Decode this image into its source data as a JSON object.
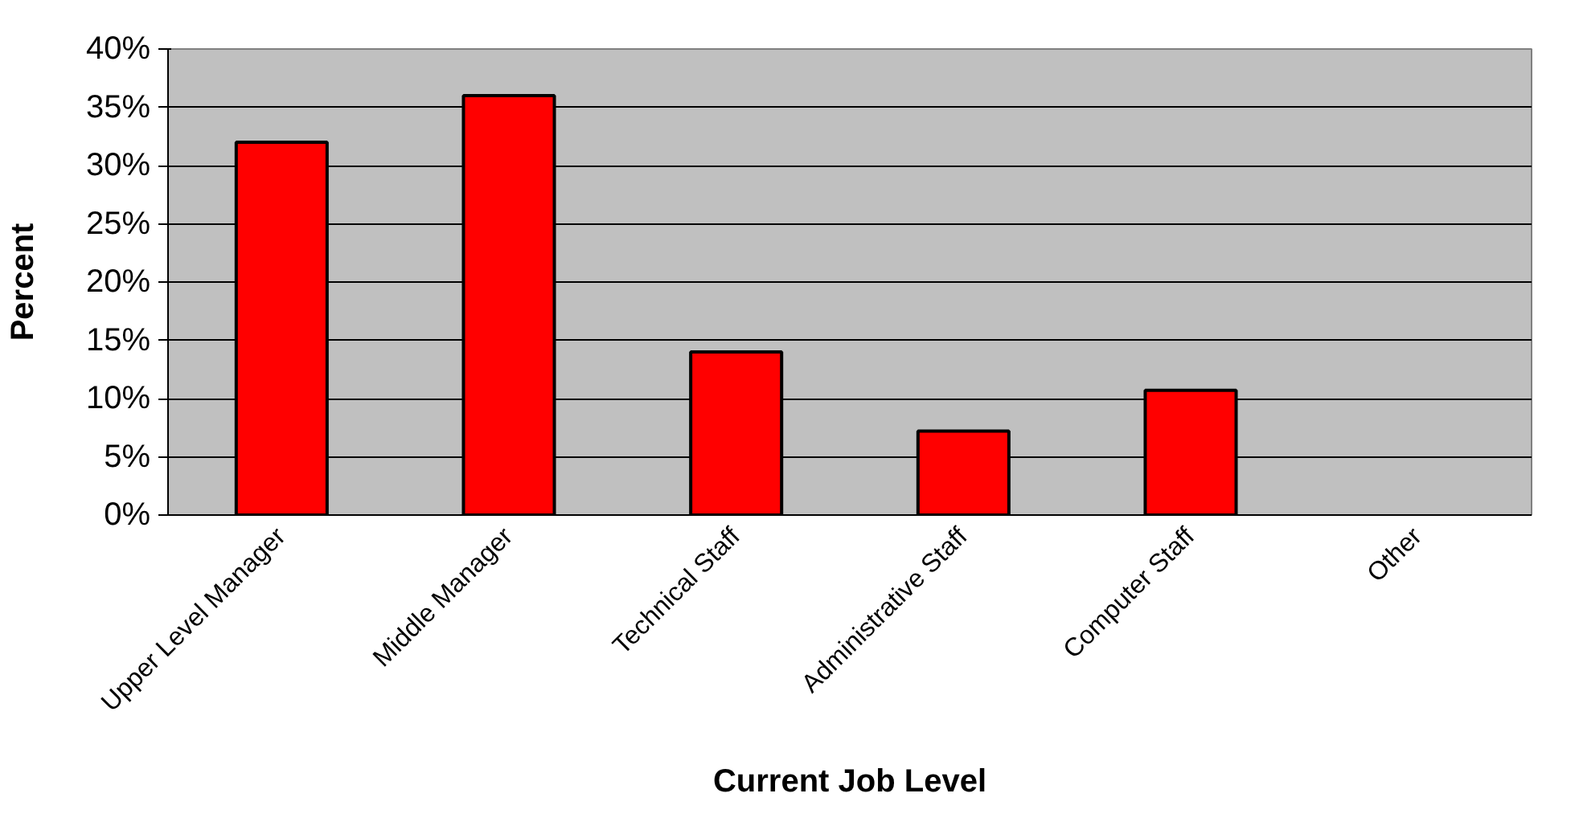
{
  "chart_data": {
    "type": "bar",
    "xlabel": "Current Job Level",
    "ylabel": "Percent",
    "categories": [
      "Upper Level Manager",
      "Middle Manager",
      "Technical Staff",
      "Administrative Staff",
      "Computer Staff",
      "Other"
    ],
    "values": [
      32,
      36,
      14,
      7.2,
      10.7,
      null
    ],
    "color": "#ff0000",
    "ylim": [
      0,
      40
    ],
    "yticks": [
      {
        "value": 0,
        "label": "0%"
      },
      {
        "value": 5,
        "label": "5%"
      },
      {
        "value": 10,
        "label": "10%"
      },
      {
        "value": 15,
        "label": "15%"
      },
      {
        "value": 20,
        "label": "20%"
      },
      {
        "value": 25,
        "label": "25%"
      },
      {
        "value": 30,
        "label": "30%"
      },
      {
        "value": 35,
        "label": "35%"
      },
      {
        "value": 40,
        "label": "40%"
      }
    ],
    "grid": "y"
  }
}
